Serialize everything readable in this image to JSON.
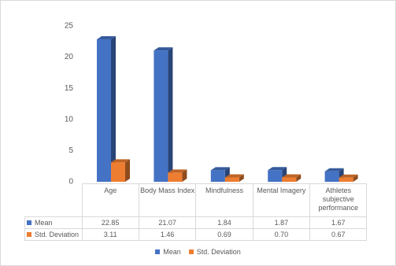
{
  "chart_data": {
    "type": "bar3d",
    "categories": [
      "Age",
      "Body Mass Index",
      "Mindfulness",
      "Mental Imagery",
      "Athletes subjective performance"
    ],
    "series": [
      {
        "name": "Mean",
        "color": "#4472c4",
        "values": [
          22.85,
          21.07,
          1.84,
          1.87,
          1.67
        ],
        "value_labels": [
          "22.85",
          "21.07",
          "1.84",
          "1.87",
          "1.67"
        ]
      },
      {
        "name": "Std. Deviation",
        "color": "#ed7d31",
        "values": [
          3.11,
          1.46,
          0.69,
          0.7,
          0.67
        ],
        "value_labels": [
          "3.11",
          "1.46",
          "0.69",
          "0.70",
          "0.67"
        ]
      }
    ],
    "ylim": [
      0,
      25
    ],
    "yticks": [
      0,
      5,
      10,
      15,
      20,
      25
    ],
    "legend": "bottom"
  }
}
